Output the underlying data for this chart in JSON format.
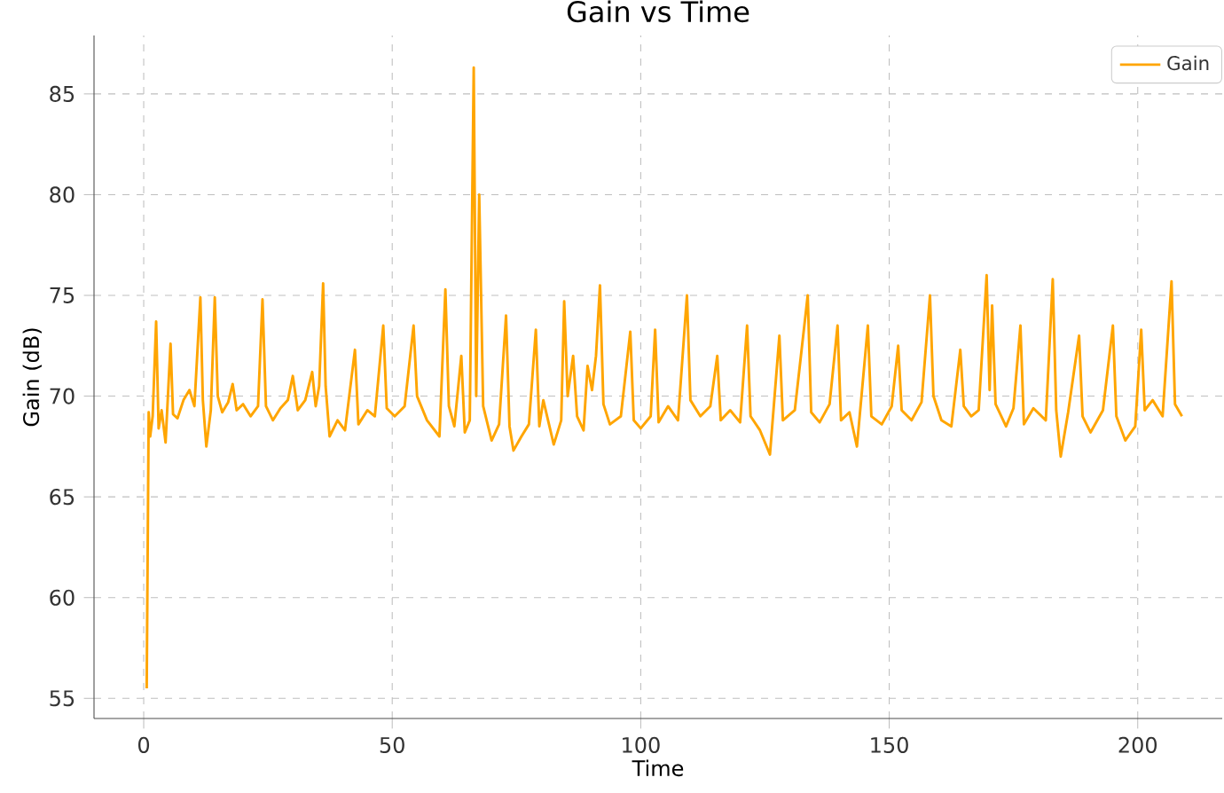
{
  "chart_data": {
    "type": "line",
    "title": "Gain vs Time",
    "xlabel": "Time",
    "ylabel": "Gain (dB)",
    "xlim": [
      -10,
      217
    ],
    "ylim": [
      54,
      87.9
    ],
    "xticks": [
      0,
      50,
      100,
      150,
      200
    ],
    "yticks": [
      55,
      60,
      65,
      70,
      75,
      80,
      85
    ],
    "grid": true,
    "legend": "top right",
    "line_style": "solid",
    "marker": "none",
    "series": [
      {
        "name": "Gain",
        "color": "#ffa500",
        "x": [
          0.6,
          1.0,
          1.3,
          1.8,
          2.5,
          3.0,
          3.6,
          4.4,
          5.4,
          5.9,
          6.8,
          8.0,
          9.2,
          10.2,
          11.4,
          11.9,
          12.6,
          13.5,
          14.3,
          14.9,
          15.8,
          17.0,
          17.9,
          18.7,
          20.0,
          21.5,
          23.0,
          23.9,
          24.6,
          26.0,
          27.5,
          29.0,
          30.0,
          31.0,
          32.5,
          33.9,
          34.6,
          35.3,
          36.1,
          36.6,
          37.4,
          39.0,
          40.5,
          42.5,
          43.2,
          45.0,
          46.5,
          48.2,
          48.9,
          50.5,
          52.5,
          54.3,
          55.0,
          57.0,
          59.5,
          60.7,
          61.4,
          62.5,
          63.9,
          64.6,
          65.6,
          66.4,
          66.9,
          67.5,
          68.3,
          70.0,
          71.5,
          72.9,
          73.6,
          74.4,
          76.0,
          77.5,
          78.9,
          79.6,
          80.4,
          82.5,
          84.0,
          84.6,
          85.3,
          86.4,
          87.2,
          88.5,
          89.3,
          90.2,
          91.0,
          91.8,
          92.5,
          93.8,
          96.0,
          97.9,
          98.6,
          100.0,
          102.0,
          102.9,
          103.6,
          105.5,
          107.5,
          109.3,
          110.0,
          112.0,
          114.0,
          115.4,
          116.1,
          118.0,
          120.0,
          121.4,
          122.1,
          124.0,
          126.0,
          127.9,
          128.6,
          131.0,
          133.6,
          134.3,
          136.0,
          138.0,
          139.6,
          140.3,
          142.0,
          143.5,
          145.7,
          146.4,
          148.5,
          150.5,
          151.8,
          152.5,
          154.5,
          156.5,
          158.2,
          158.9,
          160.5,
          162.5,
          164.3,
          165.0,
          166.5,
          168.0,
          169.6,
          170.2,
          170.7,
          171.4,
          173.5,
          175.0,
          176.4,
          177.1,
          179.0,
          181.5,
          182.9,
          183.6,
          184.5,
          186.0,
          188.2,
          188.9,
          190.5,
          193.0,
          195.0,
          195.7,
          197.5,
          199.5,
          200.7,
          201.4,
          203.0,
          205.0,
          206.8,
          207.5,
          208.9
        ],
        "values": [
          55.5,
          69.2,
          68.0,
          69.0,
          73.7,
          68.4,
          69.3,
          67.7,
          72.6,
          69.1,
          68.9,
          69.8,
          70.3,
          69.5,
          74.9,
          69.8,
          67.5,
          69.3,
          74.9,
          70.0,
          69.2,
          69.7,
          70.6,
          69.3,
          69.6,
          69.0,
          69.5,
          74.8,
          69.5,
          68.8,
          69.4,
          69.8,
          71.0,
          69.3,
          69.8,
          71.2,
          69.5,
          70.5,
          75.6,
          70.5,
          68.0,
          68.8,
          68.3,
          72.3,
          68.6,
          69.3,
          69.0,
          73.5,
          69.4,
          69.0,
          69.5,
          73.5,
          70.0,
          68.8,
          68.0,
          75.3,
          69.5,
          68.5,
          72.0,
          68.2,
          68.8,
          86.3,
          70.0,
          80.0,
          69.5,
          67.8,
          68.6,
          74.0,
          68.5,
          67.3,
          68.0,
          68.6,
          73.3,
          68.5,
          69.8,
          67.6,
          68.8,
          74.7,
          70.0,
          72.0,
          69.0,
          68.3,
          71.5,
          70.3,
          72.0,
          75.5,
          69.6,
          68.6,
          69.0,
          73.2,
          68.8,
          68.4,
          69.0,
          73.3,
          68.7,
          69.5,
          68.8,
          75.0,
          69.8,
          69.0,
          69.5,
          72.0,
          68.8,
          69.3,
          68.7,
          73.5,
          69.0,
          68.3,
          67.1,
          73.0,
          68.8,
          69.3,
          75.0,
          69.2,
          68.7,
          69.6,
          73.5,
          68.8,
          69.2,
          67.5,
          73.5,
          69.0,
          68.6,
          69.5,
          72.5,
          69.3,
          68.8,
          69.7,
          75.0,
          70.0,
          68.8,
          68.5,
          72.3,
          69.5,
          69.0,
          69.3,
          76.0,
          70.3,
          74.5,
          69.6,
          68.5,
          69.4,
          73.5,
          68.6,
          69.4,
          68.8,
          75.8,
          69.3,
          67.0,
          69.2,
          73.0,
          69.0,
          68.2,
          69.3,
          73.5,
          69.0,
          67.8,
          68.5,
          73.3,
          69.3,
          69.8,
          69.0,
          75.7,
          69.6,
          69.0
        ]
      }
    ]
  }
}
